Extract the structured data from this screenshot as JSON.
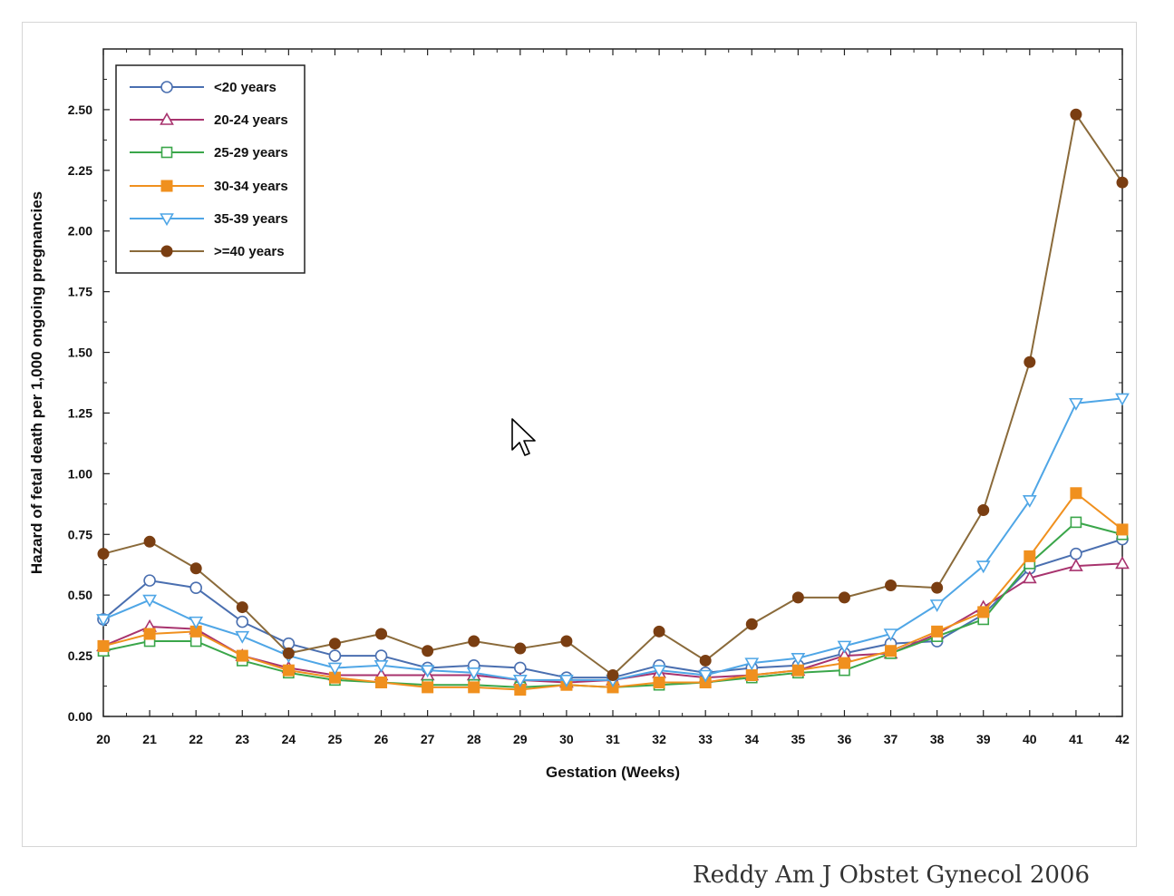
{
  "chart_data": {
    "type": "line",
    "xlabel": "Gestation (Weeks)",
    "ylabel": "Hazard of fetal death per 1,000 ongoing pregnancies",
    "x": [
      20,
      21,
      22,
      23,
      24,
      25,
      26,
      27,
      28,
      29,
      30,
      31,
      32,
      33,
      34,
      35,
      36,
      37,
      38,
      39,
      40,
      41,
      42
    ],
    "xlim": [
      20,
      42
    ],
    "ylim": [
      0,
      2.75
    ],
    "yticks": [
      0.0,
      0.25,
      0.5,
      0.75,
      1.0,
      1.25,
      1.5,
      1.75,
      2.0,
      2.25,
      2.5
    ],
    "ytick_labels": [
      "0.00",
      "0.25",
      "0.50",
      "0.75",
      "1.00",
      "1.25",
      "1.50",
      "1.75",
      "2.00",
      "2.25",
      "2.50"
    ],
    "legend_position": "top-left",
    "grid": false,
    "series": [
      {
        "name": "<20 years",
        "color": "#4a6fb0",
        "marker": "circle-open",
        "values": [
          0.4,
          0.56,
          0.53,
          0.39,
          0.3,
          0.25,
          0.25,
          0.2,
          0.21,
          0.2,
          0.16,
          0.16,
          0.21,
          0.18,
          0.2,
          0.21,
          0.26,
          0.3,
          0.31,
          0.42,
          0.61,
          0.67,
          0.73
        ]
      },
      {
        "name": "20-24 years",
        "color": "#a8336e",
        "marker": "triangle-open",
        "values": [
          0.29,
          0.37,
          0.36,
          0.25,
          0.2,
          0.17,
          0.17,
          0.17,
          0.17,
          0.15,
          0.14,
          0.15,
          0.18,
          0.16,
          0.17,
          0.19,
          0.25,
          0.26,
          0.34,
          0.45,
          0.57,
          0.62,
          0.63
        ]
      },
      {
        "name": "25-29 years",
        "color": "#3aa64a",
        "marker": "square-open",
        "values": [
          0.27,
          0.31,
          0.31,
          0.23,
          0.18,
          0.15,
          0.14,
          0.13,
          0.13,
          0.12,
          0.13,
          0.12,
          0.13,
          0.14,
          0.16,
          0.18,
          0.19,
          0.26,
          0.33,
          0.4,
          0.63,
          0.8,
          0.75
        ]
      },
      {
        "name": "30-34 years",
        "color": "#f0901e",
        "marker": "square-filled",
        "values": [
          0.29,
          0.34,
          0.35,
          0.25,
          0.19,
          0.16,
          0.14,
          0.12,
          0.12,
          0.11,
          0.13,
          0.12,
          0.14,
          0.14,
          0.17,
          0.19,
          0.22,
          0.27,
          0.35,
          0.43,
          0.66,
          0.92,
          0.77
        ]
      },
      {
        "name": "35-39 years",
        "color": "#4fa6e6",
        "marker": "triangle-down-open",
        "values": [
          0.4,
          0.48,
          0.39,
          0.33,
          0.25,
          0.2,
          0.21,
          0.19,
          0.18,
          0.15,
          0.15,
          0.15,
          0.19,
          0.17,
          0.22,
          0.24,
          0.29,
          0.34,
          0.46,
          0.62,
          0.89,
          1.29,
          1.31
        ]
      },
      {
        "name": ">=40 years",
        "color": "#7a3e12",
        "line_color": "#8a6a3a",
        "marker": "circle-filled",
        "values": [
          0.67,
          0.72,
          0.61,
          0.45,
          0.26,
          0.3,
          0.34,
          0.27,
          0.31,
          0.28,
          0.31,
          0.17,
          0.35,
          0.23,
          0.38,
          0.49,
          0.49,
          0.54,
          0.53,
          0.85,
          1.46,
          2.48,
          2.2
        ]
      }
    ]
  },
  "citation": "Reddy Am J Obstet Gynecol 2006"
}
